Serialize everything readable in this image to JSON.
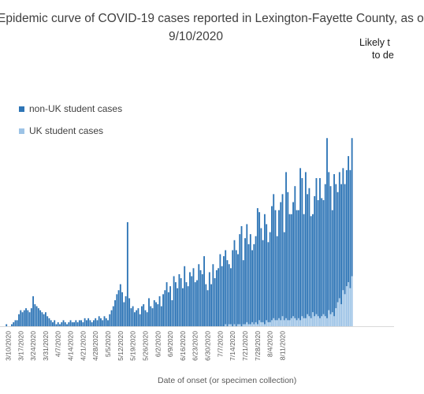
{
  "title": {
    "line1": "Epidemic curve of COVID-19 cases reported in Lexington-Fayette County, as o",
    "line2": "9/10/2020"
  },
  "annotation": {
    "line1": "Likely t",
    "line2": "to de"
  },
  "chart_data": {
    "type": "bar",
    "stacked": true,
    "xlabel": "Date of onset (or specimen collection)",
    "ylabel": "",
    "ylim": [
      0,
      100
    ],
    "grid": false,
    "legend_position": "left",
    "start_date": "3/8/2020",
    "tick_labels": [
      "3/10/2020",
      "3/17/2020",
      "3/24/2020",
      "3/31/2020",
      "4/7/2020",
      "4/14/2020",
      "4/21/2020",
      "4/28/2020",
      "5/5/2020",
      "5/12/2020",
      "5/19/2020",
      "5/26/2020",
      "6/2/2020",
      "6/9/2020",
      "6/16/2020",
      "6/23/2020",
      "6/30/2020",
      "7/7/2020",
      "7/14/2020",
      "7/21/2020",
      "7/28/2020",
      "8/4/2020",
      "8/11/2020"
    ],
    "series": [
      {
        "name": "non-UK student cases",
        "color": "#2e75b6",
        "values": [
          0,
          1,
          0,
          0,
          1,
          2,
          3,
          3,
          6,
          8,
          7,
          8,
          9,
          8,
          7,
          9,
          15,
          11,
          10,
          9,
          8,
          7,
          6,
          7,
          5,
          4,
          3,
          2,
          3,
          1,
          2,
          1,
          2,
          3,
          2,
          1,
          2,
          3,
          2,
          2,
          3,
          2,
          3,
          3,
          2,
          4,
          3,
          4,
          3,
          2,
          3,
          4,
          3,
          5,
          4,
          3,
          5,
          4,
          3,
          6,
          8,
          10,
          13,
          16,
          18,
          21,
          17,
          12,
          15,
          52,
          14,
          9,
          10,
          7,
          8,
          9,
          6,
          10,
          11,
          8,
          7,
          14,
          10,
          9,
          13,
          12,
          11,
          15,
          10,
          16,
          18,
          22,
          17,
          20,
          13,
          25,
          22,
          19,
          26,
          24,
          19,
          30,
          22,
          20,
          27,
          25,
          29,
          22,
          23,
          31,
          28,
          26,
          35,
          21,
          18,
          27,
          21,
          31,
          24,
          28,
          29,
          36,
          30,
          35,
          37,
          33,
          30,
          28,
          38,
          42,
          38,
          35,
          45,
          50,
          32,
          43,
          49,
          40,
          45,
          36,
          40,
          43,
          58,
          54,
          47,
          41,
          55,
          48,
          40,
          45,
          57,
          62,
          55,
          42,
          54,
          59,
          61,
          44,
          73,
          64,
          53,
          52,
          57,
          66,
          55,
          54,
          76,
          69,
          52,
          73,
          60,
          64,
          51,
          49,
          60,
          68,
          58,
          70,
          59,
          57,
          66,
          90,
          69,
          64,
          51,
          71,
          62,
          55,
          63,
          60,
          61,
          55,
          58,
          63,
          59,
          69
        ],
        "secondary_values": [
          0,
          0,
          0,
          0,
          0,
          0,
          0,
          0,
          0,
          0,
          0,
          0,
          0,
          0,
          0,
          0,
          0,
          0,
          0,
          0,
          0,
          0,
          0,
          0,
          0,
          0,
          0,
          0,
          0,
          0,
          0,
          0,
          0,
          0,
          0,
          0,
          0,
          0,
          0,
          0,
          0,
          0,
          0,
          0,
          0,
          0,
          0,
          0,
          0,
          0,
          0,
          0,
          0,
          0,
          0,
          0,
          0,
          0,
          0,
          0,
          0,
          0,
          0,
          0,
          0,
          0,
          0,
          0,
          0,
          0,
          0,
          0,
          0,
          0,
          0,
          0,
          0,
          0,
          0,
          0,
          0,
          0,
          0,
          0,
          0,
          0,
          0,
          0,
          0,
          0,
          0,
          0,
          0,
          0,
          0,
          0,
          0,
          0,
          0,
          0,
          0,
          0,
          0,
          0,
          0,
          0,
          0,
          0,
          0,
          0,
          0,
          0,
          0,
          0,
          0,
          0,
          0,
          0,
          0,
          0,
          0,
          0,
          0,
          0,
          0,
          0,
          0,
          0,
          0,
          0,
          0,
          0,
          0,
          0,
          0,
          0,
          0,
          0,
          0,
          0,
          0,
          0,
          0,
          0,
          0,
          0,
          0,
          0,
          0,
          0,
          0,
          0,
          0,
          0,
          0,
          0,
          0,
          0,
          0,
          0,
          0,
          0,
          0,
          0,
          0,
          0,
          0,
          0,
          0,
          0,
          0,
          0,
          0,
          0,
          0,
          0,
          0,
          0,
          0,
          0,
          0,
          0,
          0,
          0,
          0,
          0,
          0,
          0,
          0,
          0,
          0,
          0,
          0,
          0,
          0,
          0
        ]
      },
      {
        "name": "UK student cases",
        "color": "#9dc3e6",
        "values": [
          0,
          0,
          0,
          0,
          0,
          0,
          0,
          0,
          0,
          0,
          0,
          0,
          0,
          0,
          0,
          0,
          0,
          0,
          0,
          0,
          0,
          0,
          0,
          0,
          0,
          0,
          0,
          0,
          0,
          0,
          0,
          0,
          0,
          0,
          0,
          0,
          0,
          0,
          0,
          0,
          0,
          0,
          0,
          0,
          0,
          0,
          0,
          0,
          0,
          0,
          0,
          0,
          0,
          0,
          0,
          0,
          0,
          0,
          0,
          0,
          0,
          0,
          0,
          0,
          0,
          0,
          0,
          0,
          0,
          0,
          0,
          0,
          0,
          0,
          0,
          0,
          0,
          0,
          0,
          0,
          0,
          0,
          0,
          0,
          0,
          0,
          0,
          0,
          0,
          0,
          0,
          0,
          0,
          0,
          0,
          0,
          0,
          0,
          0,
          0,
          0,
          0,
          0,
          0,
          0,
          0,
          0,
          0,
          0,
          0,
          0,
          0,
          0,
          0,
          0,
          0,
          0,
          0,
          0,
          0,
          0,
          0,
          0,
          0,
          1,
          0,
          1,
          1,
          0,
          1,
          0,
          1,
          1,
          0,
          1,
          1,
          2,
          1,
          1,
          2,
          1,
          2,
          1,
          3,
          2,
          2,
          1,
          3,
          2,
          2,
          3,
          4,
          3,
          3,
          4,
          3,
          5,
          3,
          4,
          3,
          3,
          4,
          5,
          4,
          3,
          4,
          3,
          5,
          4,
          4,
          6,
          5,
          4,
          7,
          5,
          6,
          5,
          4,
          5,
          6,
          5,
          4,
          8,
          6,
          7,
          5,
          9,
          12,
          14,
          11,
          18,
          16,
          20,
          22,
          19,
          25
        ]
      }
    ]
  }
}
